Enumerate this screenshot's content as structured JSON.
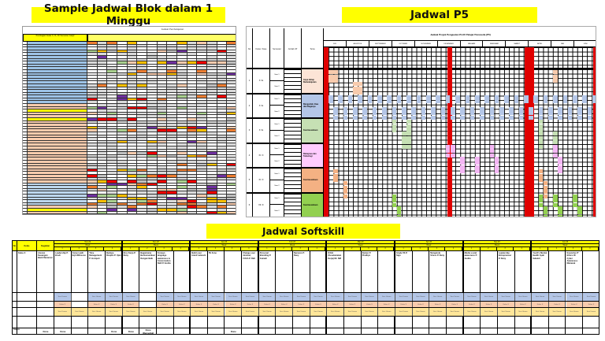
{
  "titles": {
    "blok": "Sample Jadwal Blok dalam 1 Minggu",
    "p5": "Jadwal P5",
    "softskill": "Jadwal Softskill"
  },
  "blok": {
    "sheet_title": "Jadwal Pembelajaran",
    "header_left": "Pembagian Kelas X, XI, XII Semester Ganjil"
  },
  "p5": {
    "headers": {
      "no": "No",
      "kelas": "Kelas / Fase",
      "semester": "Semester",
      "jp": "Jumlah JP",
      "tema": "Tema"
    },
    "grid_title": "Jadwal Projek Penguatan Profil Pelajar Pancasila (P5)",
    "months": [
      "JULI",
      "AGUSTUS",
      "SEPTEMBER",
      "OKTOBER",
      "NOVEMBER",
      "DESEMBER",
      "JANUARI",
      "FEBRUARI",
      "MARET",
      "APRIL",
      "MEI",
      "JUNI"
    ],
    "themes": [
      {
        "no": "1",
        "kelas": "X / E",
        "color": "#fce4d6",
        "block_color": "#f8cbad",
        "name": "Gaya Hidup Berkelanjutan"
      },
      {
        "no": "2",
        "kelas": "X / E",
        "color": "#b4c6e7",
        "block_color": "#b4c6e7",
        "name": "Bangunlah Jiwa dan Raganya"
      },
      {
        "no": "3",
        "kelas": "X / E",
        "color": "#c6e0b4",
        "block_color": "#c6e0b4",
        "name": "Kewirausahaan"
      },
      {
        "no": "4",
        "kelas": "XI / F",
        "color": "#ffccff",
        "block_color": "#f4b6f4",
        "name": "Rekayasa dan Teknologi"
      },
      {
        "no": "5",
        "kelas": "XI / F",
        "color": "#f4b183",
        "block_color": "#f4b183",
        "name": "Kewirausahaan"
      },
      {
        "no": "6",
        "kelas": "XII / F",
        "color": "#92d050",
        "block_color": "#92d050",
        "name": "Kewirausahaan"
      }
    ],
    "semesters": [
      "Sem 1",
      "Sem 2"
    ]
  },
  "softskill": {
    "headers": {
      "no": "No",
      "kelas": "Kelas",
      "kegiatan": "Kegiatan"
    },
    "row_label": "Kelas X",
    "kegiatan": "Literasi Keuangan Bank Danamon",
    "week_label": "Week",
    "months": [
      {
        "name": "Nov-22",
        "topics": [
          "Leadership P. Brodi",
          "Career path Eqh Wibisono",
          "Time Management P. Gotzpoli",
          "Budaya Disiplin P. Ujan"
        ]
      },
      {
        "name": "Dec-22",
        "topics": [
          "Etos Kerja P. Deny",
          "Bagaimana Berkomunikasi Dengan Baik",
          "Foreign language awareness & Conversation Skill P. Andito",
          ""
        ]
      },
      {
        "name": "Jan-23",
        "topics": [
          "Build your brand network",
          "5S Zone",
          "",
          "Change your mindset, VUCA P. Rafi"
        ]
      },
      {
        "name": "Feb-23",
        "topics": [
          "Personal Branding P. Gunadi",
          "",
          "Nemesis P. Deny",
          ""
        ]
      },
      {
        "name": "Mar-23",
        "topics": [
          "K3LH (Keselamatan Kerja) Mr. NM",
          "",
          "Kaizen P. Pradhya",
          ""
        ]
      },
      {
        "name": "Apr-23",
        "topics": [
          "Grade 5S P. Sign",
          "",
          "Mengelola Stress P. Deny",
          ""
        ]
      },
      {
        "name": "Mei-23",
        "topics": [
          "Media sosial awareness P. Andito",
          "",
          "Leadership Entrepreneur P. Deny",
          ""
        ]
      },
      {
        "name": "Jun-23",
        "topics": [
          "Youth's Mental Health Ayah Subekti",
          "",
          "Executive IT Ethics ID Cyber Awareness Mubarak",
          ""
        ]
      }
    ],
    "band_labels": {
      "blue": "Sesi Umum",
      "orange": "Kelas X",
      "yellow": "Sesi Umum"
    },
    "done_label": "Done",
    "done_remedial": "Done (Remedial)",
    "status_label": "Status"
  }
}
